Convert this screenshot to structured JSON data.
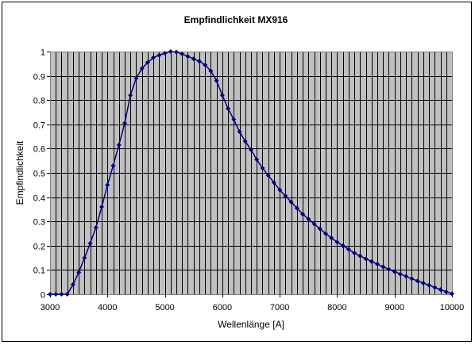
{
  "chart_data": {
    "type": "line",
    "title": "Empfindlichkeit MX916",
    "xlabel": "Wellenlänge [A]",
    "ylabel": "Empfindlichkeit",
    "xlim": [
      3000,
      10000
    ],
    "ylim": [
      0,
      1
    ],
    "x_ticks": [
      3000,
      4000,
      5000,
      6000,
      7000,
      8000,
      9000,
      10000
    ],
    "y_ticks": [
      0,
      0.1,
      0.2,
      0.3,
      0.4,
      0.5,
      0.6,
      0.7,
      0.8,
      0.9,
      1
    ],
    "grid": true,
    "legend": "none",
    "colors": {
      "plot_background": "#c0c0c0",
      "series": "#000080",
      "grid": "#000000"
    },
    "series": [
      {
        "x": [
          3000,
          3100,
          3200,
          3300,
          3400,
          3500,
          3600,
          3700,
          3800,
          3900,
          4000,
          4100,
          4200,
          4300,
          4400,
          4500,
          4600,
          4700,
          4800,
          4900,
          5000,
          5100,
          5200,
          5300,
          5400,
          5500,
          5600,
          5700,
          5800,
          5900,
          6000,
          6100,
          6200,
          6300,
          6400,
          6500,
          6600,
          6700,
          6800,
          6900,
          7000,
          7100,
          7200,
          7300,
          7400,
          7500,
          7600,
          7700,
          7800,
          7900,
          8000,
          8100,
          8200,
          8300,
          8400,
          8500,
          8600,
          8700,
          8800,
          8900,
          9000,
          9100,
          9200,
          9300,
          9400,
          9500,
          9600,
          9700,
          9800,
          9900,
          10000
        ],
        "y": [
          0,
          0,
          0,
          0,
          0.04,
          0.09,
          0.15,
          0.21,
          0.275,
          0.36,
          0.45,
          0.53,
          0.615,
          0.705,
          0.82,
          0.89,
          0.93,
          0.955,
          0.975,
          0.985,
          0.993,
          1.0,
          0.998,
          0.99,
          0.98,
          0.97,
          0.96,
          0.945,
          0.92,
          0.88,
          0.82,
          0.765,
          0.72,
          0.67,
          0.63,
          0.595,
          0.555,
          0.52,
          0.49,
          0.46,
          0.43,
          0.405,
          0.38,
          0.355,
          0.33,
          0.31,
          0.29,
          0.27,
          0.25,
          0.232,
          0.215,
          0.2,
          0.185,
          0.17,
          0.158,
          0.146,
          0.135,
          0.124,
          0.113,
          0.103,
          0.093,
          0.083,
          0.074,
          0.064,
          0.055,
          0.046,
          0.037,
          0.028,
          0.019,
          0.01,
          0.002
        ]
      }
    ]
  }
}
